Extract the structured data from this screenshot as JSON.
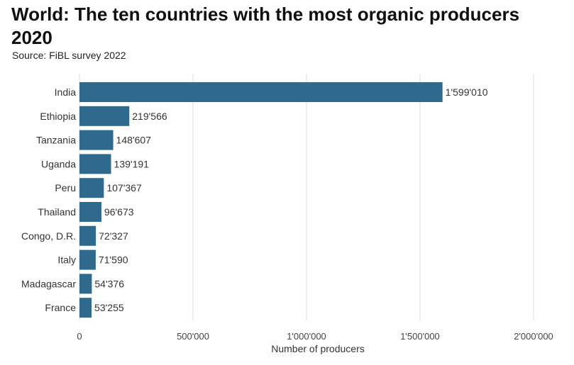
{
  "title": "World: The ten countries with the most organic producers 2020",
  "source": "Source: FiBL survey 2022",
  "colors": {
    "bar": "#2f6a8e",
    "grid": "#d8dde3"
  },
  "chart_data": {
    "type": "bar",
    "orientation": "horizontal",
    "title": "World: The ten countries with the most organic producers 2020",
    "xlabel": "Number of producers",
    "ylabel": "",
    "categories": [
      "India",
      "Ethiopia",
      "Tanzania",
      "Uganda",
      "Peru",
      "Thailand",
      "Congo, D.R.",
      "Italy",
      "Madagascar",
      "France"
    ],
    "values": [
      1599010,
      219566,
      148607,
      139191,
      107367,
      96673,
      72327,
      71590,
      54376,
      53255
    ],
    "value_labels": [
      "1'599'010",
      "219'566",
      "148'607",
      "139'191",
      "107'367",
      "96'673",
      "72'327",
      "71'590",
      "54'376",
      "53'255"
    ],
    "xlim": [
      0,
      2000000
    ],
    "ticks": [
      0,
      500000,
      1000000,
      1500000,
      2000000
    ],
    "tick_labels": [
      "0",
      "500'000",
      "1'000'000",
      "1'500'000",
      "2'000'000"
    ],
    "grid": true,
    "legend": "none"
  }
}
